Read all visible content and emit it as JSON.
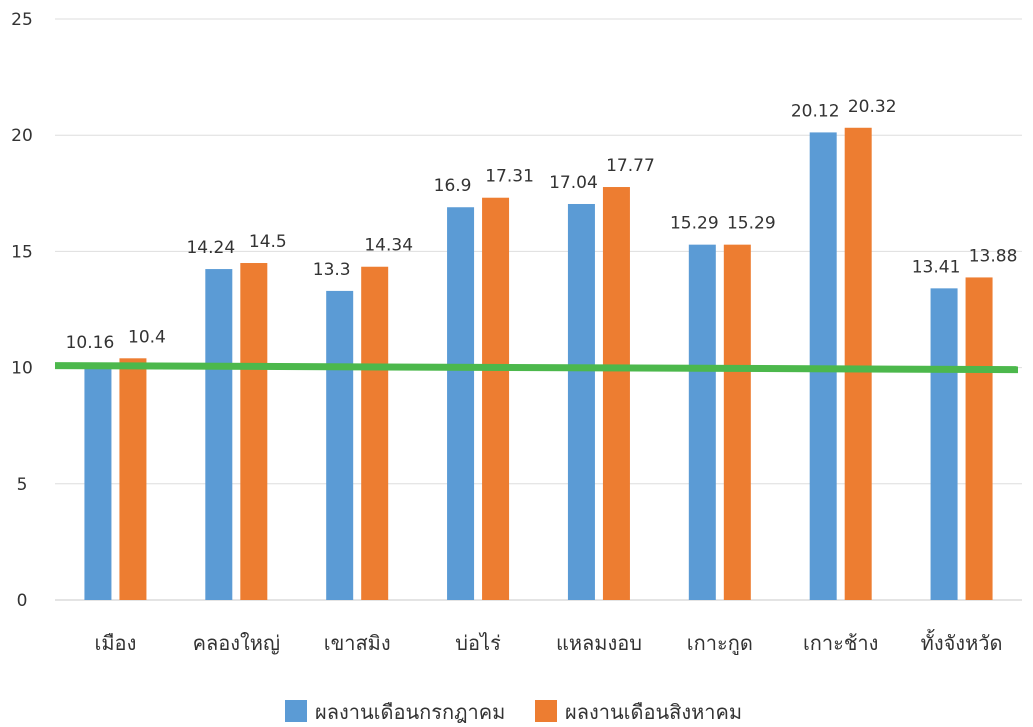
{
  "chart_data": {
    "type": "bar",
    "categories": [
      "เมือง",
      "คลองใหญ่",
      "เขาสมิง",
      "บ่อไร่",
      "แหลมงอบ",
      "เกาะกูด",
      "เกาะช้าง",
      "ทั้งจังหวัด"
    ],
    "series": [
      {
        "name": "ผลงานเดือนกรกฎาคม",
        "color": "#5B9BD5",
        "values": [
          10.16,
          14.24,
          13.3,
          16.9,
          17.04,
          15.29,
          20.12,
          13.41
        ]
      },
      {
        "name": "ผลงานเดือนสิงหาคม",
        "color": "#ED7D31",
        "values": [
          10.4,
          14.5,
          14.34,
          17.31,
          17.77,
          15.29,
          20.32,
          13.88
        ]
      }
    ],
    "ylim": [
      0,
      25
    ],
    "yticks": [
      0,
      5,
      10,
      15,
      20,
      25
    ],
    "grid": true,
    "legend": "bottom",
    "reference_line": {
      "value": 10,
      "color": "#4CB84C"
    }
  }
}
